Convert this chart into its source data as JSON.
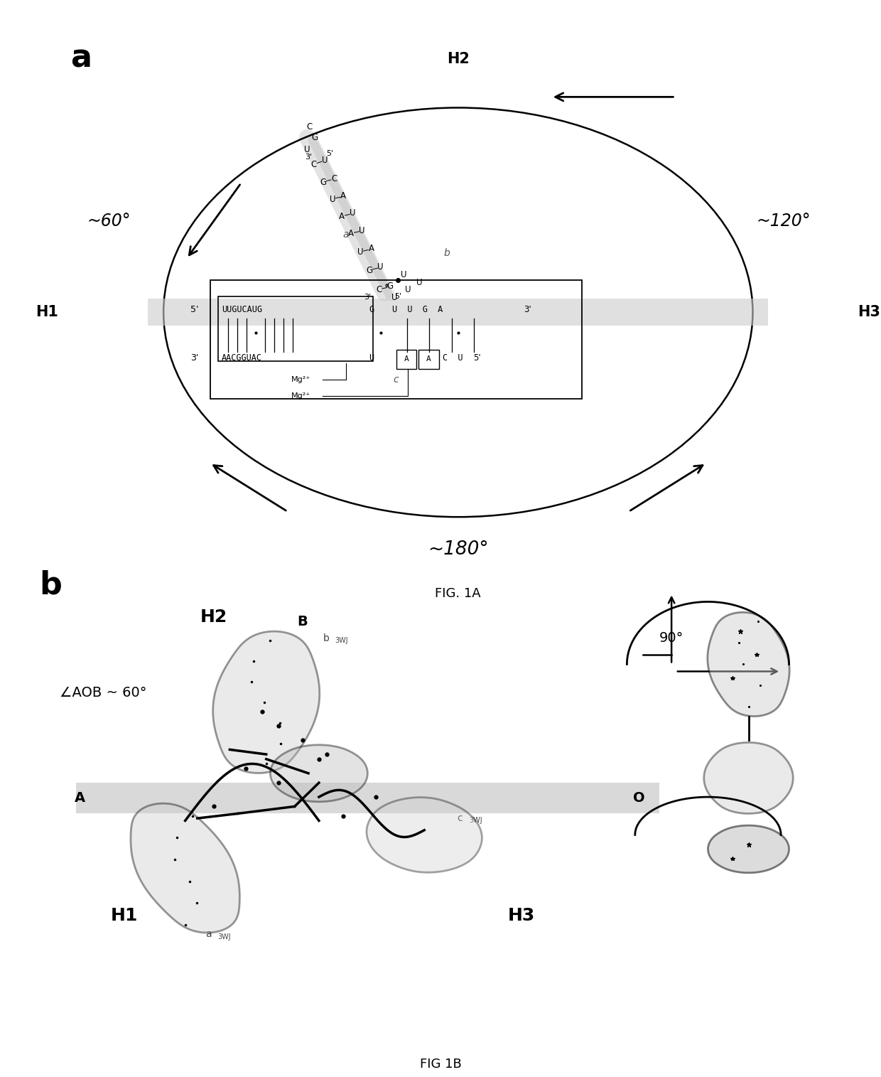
{
  "bg_color": "#ffffff",
  "panel_a_label": "a",
  "panel_b_label": "b",
  "fig1a_label": "FIG. 1A",
  "fig1b_label": "FIG 1B"
}
